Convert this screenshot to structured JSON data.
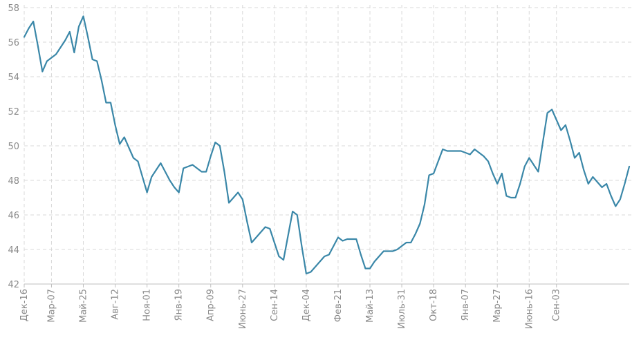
{
  "chart_data": {
    "type": "line",
    "title": "",
    "xlabel": "",
    "ylabel": "",
    "ylim": [
      42,
      58
    ],
    "yticks": [
      42,
      44,
      46,
      48,
      50,
      52,
      54,
      56,
      58
    ],
    "grid": true,
    "legend": "none",
    "color": "#3a87a8",
    "x_ticks": [
      {
        "index": 0,
        "label": "Дек-16"
      },
      {
        "index": 6,
        "label": "Мар-07"
      },
      {
        "index": 13,
        "label": "Май-25"
      },
      {
        "index": 20,
        "label": "Авг-12"
      },
      {
        "index": 27,
        "label": "Ноя-01"
      },
      {
        "index": 34,
        "label": "Янв-19"
      },
      {
        "index": 41,
        "label": "Апр-09"
      },
      {
        "index": 48,
        "label": "Июнь-27"
      },
      {
        "index": 55,
        "label": "Сен-14"
      },
      {
        "index": 62,
        "label": "Дек-04"
      },
      {
        "index": 69,
        "label": "Фев-21"
      },
      {
        "index": 76,
        "label": "Май-13"
      },
      {
        "index": 83,
        "label": "Июль-31"
      },
      {
        "index": 90,
        "label": "Окт-18"
      },
      {
        "index": 97,
        "label": "Янв-07"
      },
      {
        "index": 104,
        "label": "Мар-27"
      },
      {
        "index": 111,
        "label": "Июнь-16"
      },
      {
        "index": 117,
        "label": "Сен-03"
      }
    ],
    "values": [
      56.3,
      56.8,
      57.2,
      55.8,
      54.3,
      54.9,
      55.1,
      55.3,
      55.7,
      56.1,
      56.6,
      55.4,
      56.9,
      57.5,
      56.3,
      55.0,
      54.9,
      53.8,
      52.5,
      52.5,
      51.2,
      50.1,
      50.5,
      49.9,
      49.3,
      49.1,
      48.2,
      47.3,
      48.2,
      48.6,
      49.0,
      48.5,
      48.0,
      47.6,
      47.3,
      48.7,
      48.8,
      48.9,
      48.7,
      48.5,
      48.5,
      49.4,
      50.2,
      50.0,
      48.5,
      46.7,
      47.0,
      47.3,
      46.9,
      45.6,
      44.4,
      44.7,
      45.0,
      45.3,
      45.2,
      44.4,
      43.6,
      43.4,
      44.8,
      46.2,
      46.0,
      44.2,
      42.6,
      42.7,
      43.0,
      43.3,
      43.6,
      43.7,
      44.2,
      44.7,
      44.5,
      44.6,
      44.6,
      44.6,
      43.7,
      42.9,
      42.9,
      43.3,
      43.6,
      43.9,
      43.9,
      43.9,
      44.0,
      44.2,
      44.4,
      44.4,
      44.9,
      45.5,
      46.6,
      48.3,
      48.4,
      49.1,
      49.8,
      49.7,
      49.7,
      49.7,
      49.7,
      49.6,
      49.5,
      49.8,
      49.6,
      49.4,
      49.1,
      48.4,
      47.8,
      48.4,
      47.1,
      47.0,
      47.0,
      47.8,
      48.8,
      49.3,
      48.9,
      48.5,
      50.2,
      51.9,
      52.1,
      51.5,
      50.9,
      51.2,
      50.3,
      49.3,
      49.6,
      48.6,
      47.8,
      48.2,
      47.9,
      47.6,
      47.8,
      47.1,
      46.5,
      46.9,
      47.8,
      48.8
    ]
  }
}
